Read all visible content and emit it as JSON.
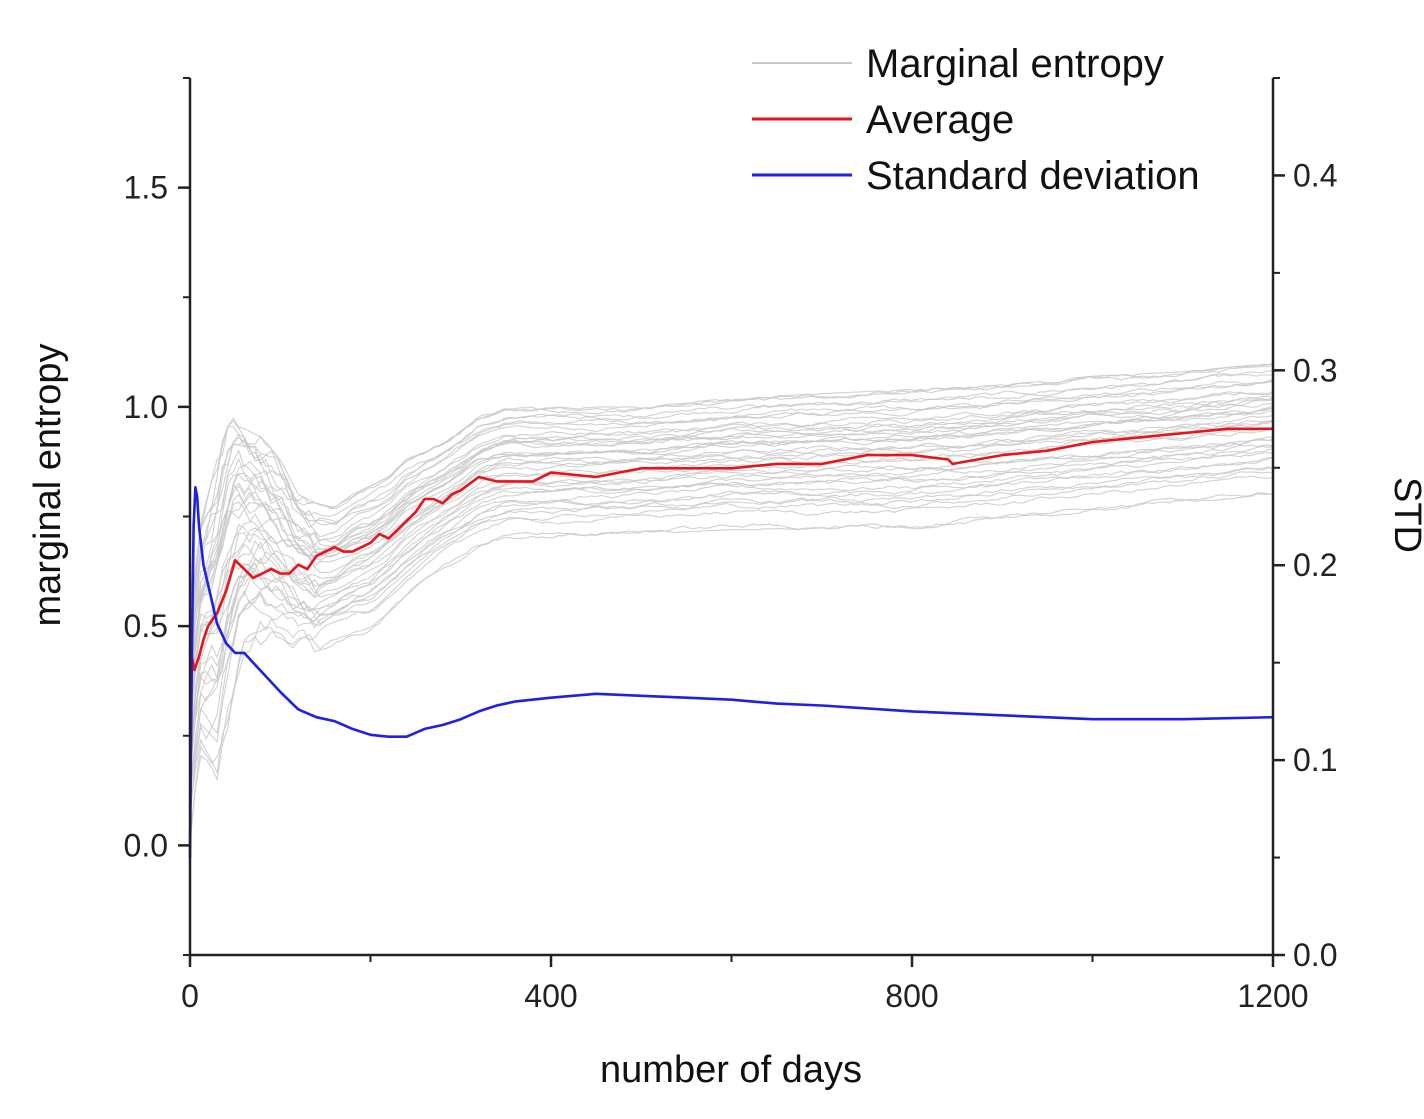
{
  "chart_data": {
    "type": "line",
    "title": "",
    "xlabel": "number of days",
    "ylabel_left": "marginal entropy",
    "ylabel_right": "STD",
    "xlim": [
      0,
      1200
    ],
    "ylim_left": [
      -0.25,
      1.75
    ],
    "ylim_right": [
      0,
      0.45
    ],
    "x_ticks": [
      0,
      400,
      800,
      1200
    ],
    "x_tick_labels": [
      "0",
      "400",
      "800",
      "1200"
    ],
    "y_left_ticks": [
      0.0,
      0.5,
      1.0,
      1.5
    ],
    "y_left_tick_labels": [
      "0.0",
      "0.5",
      "1.0",
      "1.5"
    ],
    "y_right_ticks": [
      0.0,
      0.1,
      0.2,
      0.3,
      0.4
    ],
    "y_right_tick_labels": [
      "0.0",
      "0.1",
      "0.2",
      "0.3",
      "0.4"
    ],
    "grid": false,
    "legend_position": "top-right",
    "legend": [
      "Marginal entropy",
      "Average",
      "Standard deviation"
    ],
    "series": [
      {
        "name": "Average",
        "axis": "left",
        "color": "#e8141c",
        "x": [
          0,
          5,
          10,
          15,
          20,
          30,
          40,
          50,
          60,
          70,
          80,
          90,
          100,
          110,
          120,
          130,
          140,
          150,
          160,
          170,
          180,
          190,
          200,
          210,
          220,
          230,
          240,
          250,
          260,
          270,
          280,
          290,
          300,
          320,
          340,
          360,
          380,
          400,
          450,
          500,
          550,
          600,
          650,
          700,
          750,
          800,
          840,
          845,
          900,
          950,
          1000,
          1050,
          1100,
          1150,
          1200
        ],
        "values": [
          0.45,
          0.4,
          0.43,
          0.47,
          0.5,
          0.53,
          0.58,
          0.65,
          0.63,
          0.61,
          0.62,
          0.63,
          0.62,
          0.62,
          0.64,
          0.63,
          0.66,
          0.67,
          0.68,
          0.67,
          0.67,
          0.68,
          0.69,
          0.71,
          0.7,
          0.72,
          0.74,
          0.76,
          0.79,
          0.79,
          0.78,
          0.8,
          0.81,
          0.84,
          0.83,
          0.83,
          0.83,
          0.85,
          0.84,
          0.86,
          0.86,
          0.86,
          0.87,
          0.87,
          0.89,
          0.89,
          0.88,
          0.87,
          0.89,
          0.9,
          0.92,
          0.93,
          0.94,
          0.95,
          0.95
        ]
      },
      {
        "name": "Standard deviation",
        "axis": "right",
        "color": "#1f1fe6",
        "x": [
          0,
          2,
          4,
          6,
          8,
          10,
          15,
          20,
          30,
          40,
          50,
          60,
          70,
          80,
          100,
          120,
          140,
          160,
          180,
          200,
          220,
          240,
          260,
          280,
          300,
          320,
          340,
          360,
          400,
          450,
          500,
          550,
          600,
          650,
          700,
          800,
          900,
          1000,
          1100,
          1200
        ],
        "values": [
          0.05,
          0.15,
          0.22,
          0.24,
          0.235,
          0.22,
          0.2,
          0.19,
          0.17,
          0.16,
          0.155,
          0.155,
          0.15,
          0.145,
          0.135,
          0.126,
          0.122,
          0.12,
          0.116,
          0.113,
          0.112,
          0.112,
          0.116,
          0.118,
          0.121,
          0.125,
          0.128,
          0.13,
          0.132,
          0.134,
          0.133,
          0.132,
          0.131,
          0.129,
          0.128,
          0.125,
          0.123,
          0.121,
          0.121,
          0.122
        ]
      }
    ],
    "marginal_entropy_band": {
      "name": "Marginal entropy",
      "axis": "left",
      "color": "#c9c9c9",
      "x": [
        0,
        10,
        20,
        30,
        40,
        50,
        60,
        80,
        100,
        120,
        140,
        160,
        180,
        200,
        220,
        240,
        260,
        280,
        300,
        320,
        350,
        400,
        500,
        600,
        700,
        800,
        900,
        1000,
        1100,
        1200
      ],
      "lower": [
        0.0,
        0.2,
        0.18,
        0.15,
        0.25,
        0.35,
        0.42,
        0.45,
        0.45,
        0.44,
        0.42,
        0.45,
        0.47,
        0.48,
        0.52,
        0.56,
        0.6,
        0.63,
        0.65,
        0.68,
        0.7,
        0.7,
        0.71,
        0.72,
        0.72,
        0.72,
        0.74,
        0.76,
        0.78,
        0.8
      ],
      "upper": [
        0.5,
        0.72,
        0.8,
        0.88,
        0.95,
        0.98,
        0.95,
        0.93,
        0.88,
        0.8,
        0.78,
        0.77,
        0.8,
        0.82,
        0.84,
        0.88,
        0.9,
        0.92,
        0.95,
        0.98,
        1.0,
        1.0,
        1.0,
        1.02,
        1.03,
        1.04,
        1.05,
        1.07,
        1.08,
        1.1
      ],
      "count": 40
    }
  }
}
